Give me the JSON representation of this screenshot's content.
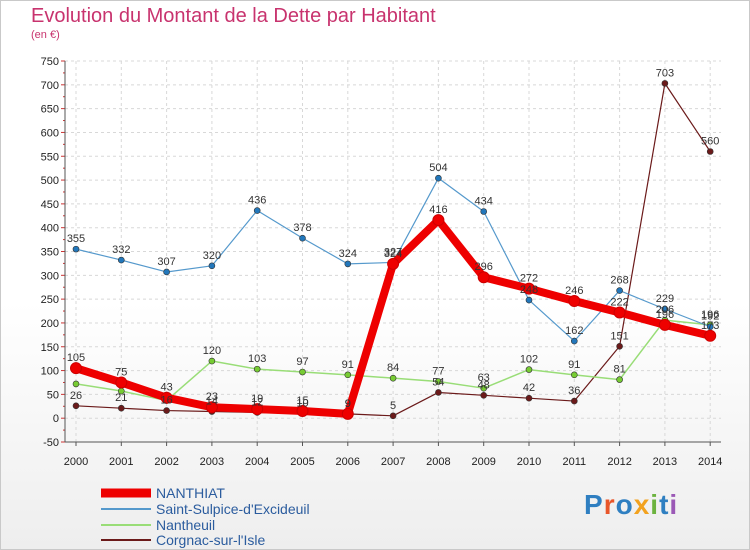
{
  "title": "Evolution du Montant de la Dette par Habitant",
  "subtitle": "(en €)",
  "logo_text": "Proxiti",
  "logo_colors": [
    "#2f7fc1",
    "#e8562a",
    "#2f7fc1",
    "#f2a21f",
    "#6cb33f",
    "#2f7fc1",
    "#9b59b6"
  ],
  "chart_data": {
    "type": "line",
    "x": [
      "2000",
      "2001",
      "2002",
      "2003",
      "2004",
      "2005",
      "2006",
      "2007",
      "2008",
      "2009",
      "2010",
      "2011",
      "2012",
      "2013",
      "2014"
    ],
    "ylim": [
      -50,
      750
    ],
    "yticks": [
      -50,
      0,
      50,
      100,
      150,
      200,
      250,
      300,
      350,
      400,
      450,
      500,
      550,
      600,
      650,
      700,
      750
    ],
    "grid": true,
    "legend_position": "bottom-left",
    "series": [
      {
        "name": "Corgnac-sur-l'Isle",
        "color": "#6b1a1a",
        "marker": "#6b1a1a",
        "width": 1.2,
        "values": [
          26,
          21,
          16,
          14,
          12,
          10,
          9,
          5,
          54,
          48,
          42,
          36,
          151,
          703,
          560
        ],
        "labels": [
          "26",
          "21",
          "16",
          "14",
          "12",
          "10",
          "9",
          "5",
          "54",
          "48",
          "42",
          "36",
          "151",
          "703",
          "560"
        ]
      },
      {
        "name": "Nantheuil",
        "color": "#99dd77",
        "marker": "#77cc33",
        "width": 1.5,
        "values": [
          72,
          57,
          37,
          120,
          103,
          97,
          91,
          84,
          77,
          63,
          102,
          91,
          81,
          206,
          196
        ],
        "labels": [
          "",
          "",
          "",
          "120",
          "103",
          "97",
          "91",
          "84",
          "77",
          "63",
          "102",
          "91",
          "81",
          "206",
          "196"
        ]
      },
      {
        "name": "Saint-Sulpice-d'Excideuil",
        "color": "#5599cc",
        "marker": "#2277bb",
        "width": 1.2,
        "values": [
          355,
          332,
          307,
          320,
          436,
          378,
          324,
          327,
          504,
          434,
          248,
          162,
          268,
          229,
          192
        ],
        "labels": [
          "355",
          "332",
          "307",
          "320",
          "436",
          "378",
          "324",
          "327",
          "504",
          "434",
          "248",
          "162",
          "268",
          "229",
          "192"
        ]
      },
      {
        "name": "NANTHIAT",
        "color": "#ee0000",
        "marker": "#ee0000",
        "width": 8,
        "values": [
          105,
          75,
          43,
          23,
          19,
          15,
          9,
          324,
          416,
          296,
          272,
          246,
          222,
          196,
          173
        ],
        "labels": [
          "105",
          "75",
          "43",
          "23",
          "19",
          "15",
          "9",
          "324",
          "416",
          "296",
          "272",
          "246",
          "222",
          "196",
          "173"
        ]
      }
    ],
    "legend": [
      {
        "name": "NANTHIAT",
        "color": "#ee0000",
        "width": 9
      },
      {
        "name": "Saint-Sulpice-d'Excideuil",
        "color": "#5599cc",
        "width": 2
      },
      {
        "name": "Nantheuil",
        "color": "#99dd77",
        "width": 2
      },
      {
        "name": "Corgnac-sur-l'Isle",
        "color": "#6b1a1a",
        "width": 2
      }
    ]
  }
}
